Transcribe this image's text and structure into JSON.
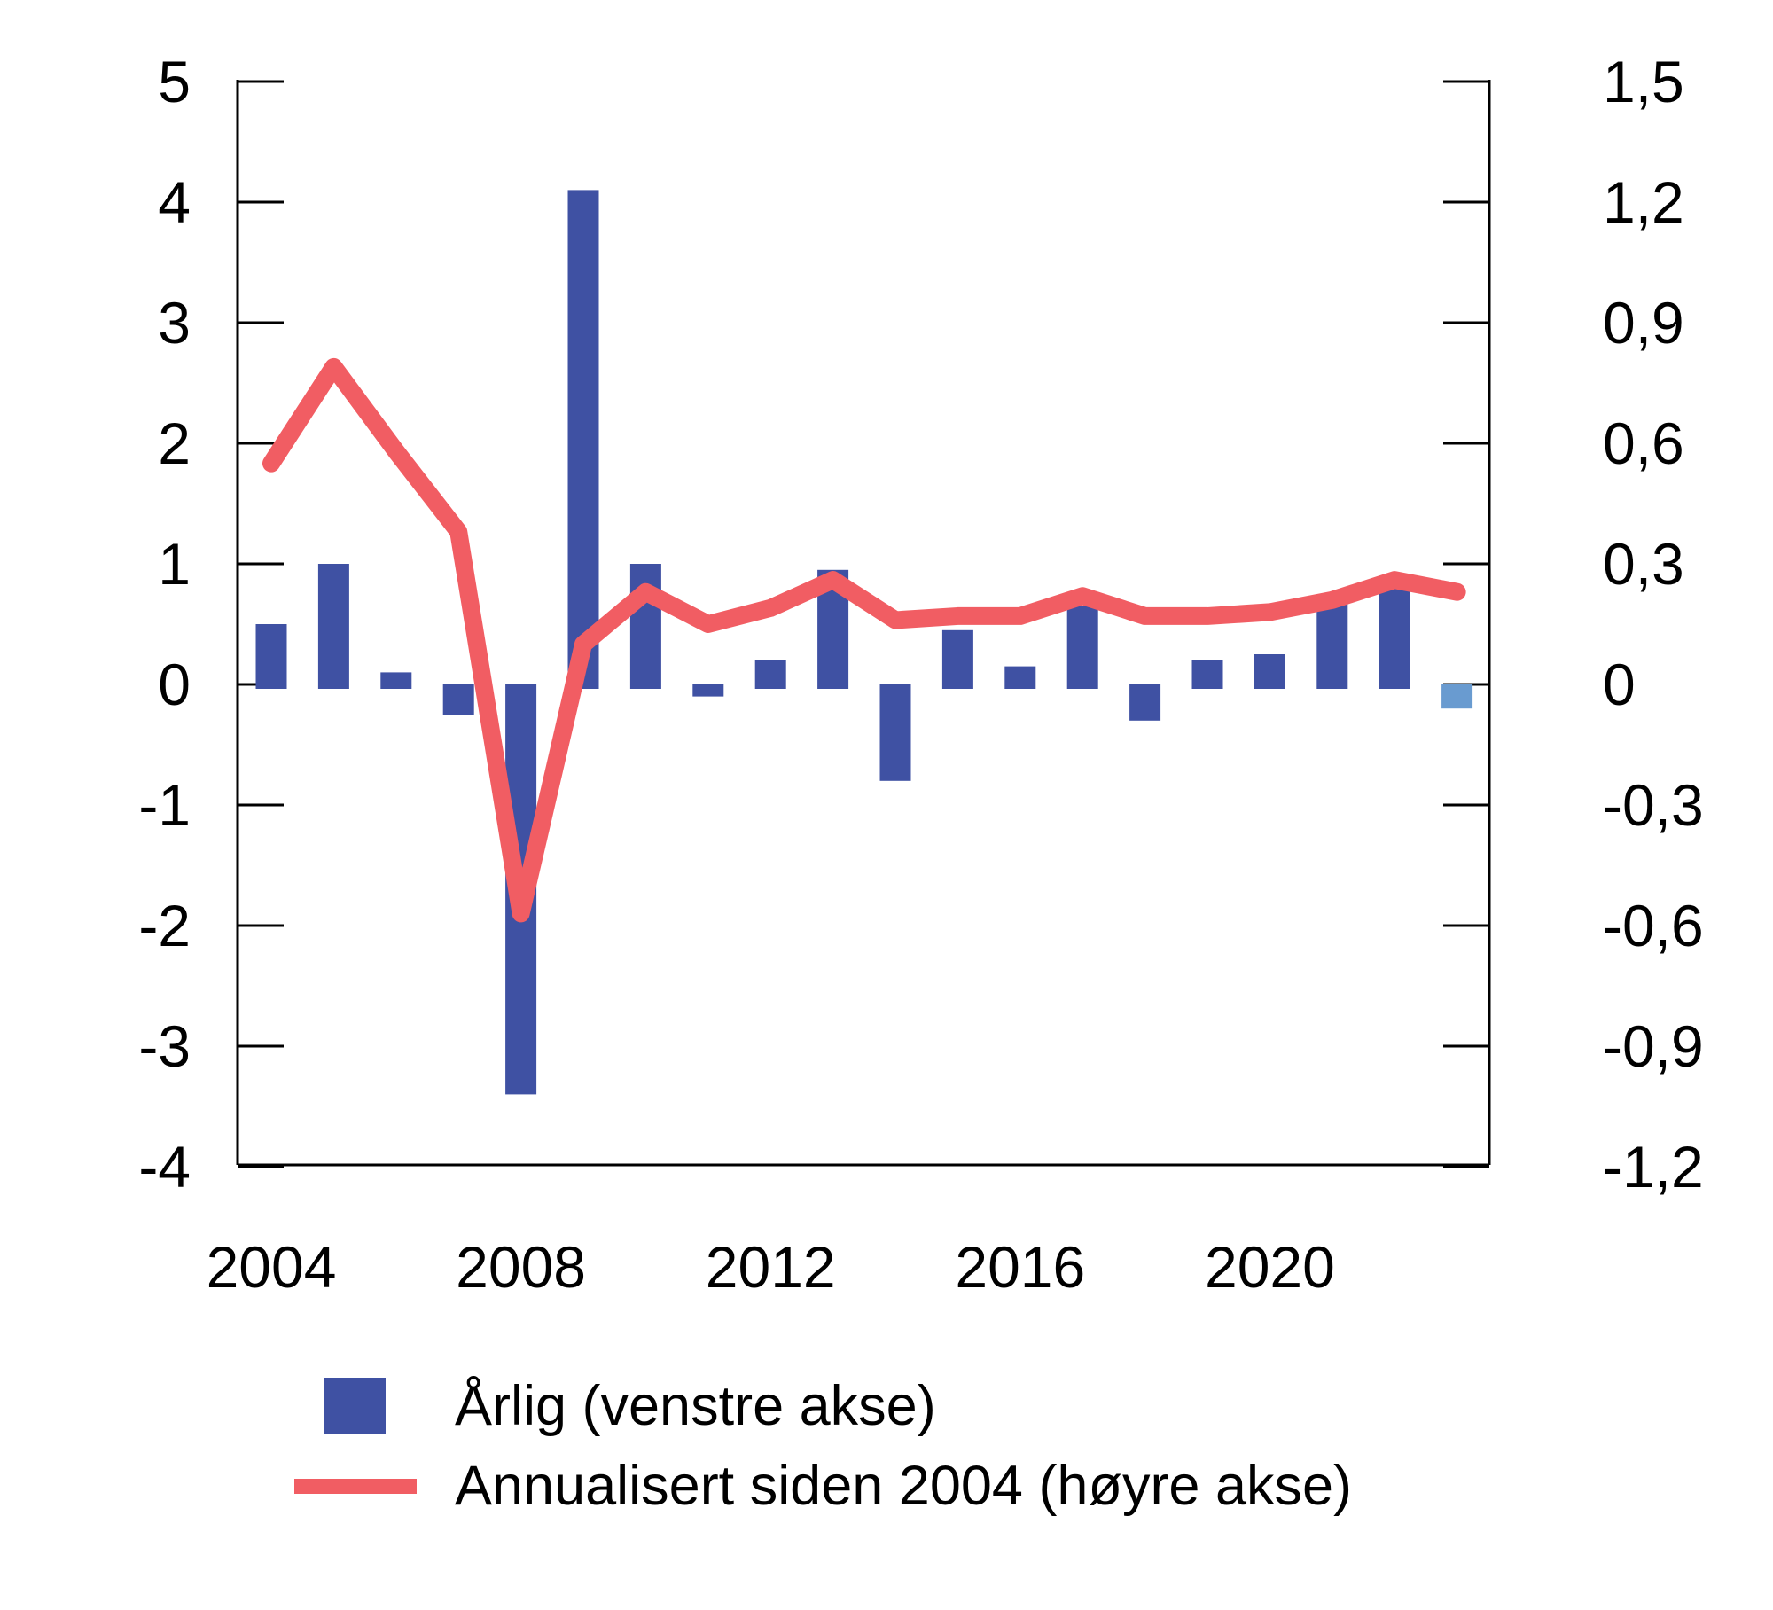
{
  "colors": {
    "background": "#FFFFFF",
    "bar": "#3F51A3",
    "bar_last": "#699BD0",
    "line": "#F15D63",
    "axis": "#000000",
    "text": "#000000"
  },
  "legend": {
    "items": [
      {
        "label": "Årlig (venstre akse)",
        "swatch": "blue-square"
      },
      {
        "label": "Annualisert siden 2004 (høyre akse)",
        "swatch": "red-line"
      }
    ]
  },
  "chart_data": {
    "type": "bar",
    "subtype": "dual-axis bar + line",
    "title": "",
    "xlabel": "",
    "ylabel_left": "",
    "ylabel_right": "",
    "grid": false,
    "legend_position": "bottom-left",
    "categories": [
      2004,
      2005,
      2006,
      2007,
      2008,
      2009,
      2010,
      2011,
      2012,
      2013,
      2014,
      2015,
      2016,
      2017,
      2018,
      2019,
      2020,
      2021,
      2022,
      2023
    ],
    "series": [
      {
        "name": "Årlig (venstre akse)",
        "type": "bar",
        "axis": "left",
        "values": [
          0.5,
          1.0,
          0.1,
          -0.25,
          -3.4,
          4.1,
          1.0,
          -0.1,
          0.2,
          0.95,
          -0.8,
          0.45,
          0.15,
          0.65,
          -0.3,
          0.2,
          0.25,
          0.7,
          0.8,
          -0.2
        ],
        "last_point_highlighted": true
      },
      {
        "name": "Annualisert siden 2004 (høyre akse)",
        "type": "line",
        "axis": "right",
        "values": [
          0.55,
          0.79,
          0.58,
          0.38,
          -0.57,
          0.1,
          0.23,
          0.15,
          0.19,
          0.26,
          0.16,
          0.17,
          0.17,
          0.22,
          0.17,
          0.17,
          0.18,
          0.21,
          0.26,
          0.23
        ]
      }
    ],
    "left_axis": {
      "range": [
        -4,
        5
      ],
      "values": [
        5,
        4,
        3,
        2,
        1,
        0,
        -1,
        -2,
        -3,
        -4
      ],
      "labels": [
        "5",
        "4",
        "3",
        "2",
        "1",
        "0",
        "-1",
        "-2",
        "-3",
        "-4"
      ]
    },
    "right_axis": {
      "range": [
        -1.2,
        1.5
      ],
      "values": [
        1.5,
        1.2,
        0.9,
        0.6,
        0.3,
        0,
        -0.3,
        -0.6,
        -0.9,
        -1.2
      ],
      "labels": [
        "1,5",
        "1,2",
        "0,9",
        "0,6",
        "0,3",
        "0",
        "-0,3",
        "-0,6",
        "-0,9",
        "-1,2"
      ]
    },
    "x_axis": {
      "tick_labels": [
        "2004",
        "2008",
        "2012",
        "2016",
        "2020"
      ],
      "tick_indices": [
        0,
        4,
        8,
        12,
        16
      ]
    }
  }
}
